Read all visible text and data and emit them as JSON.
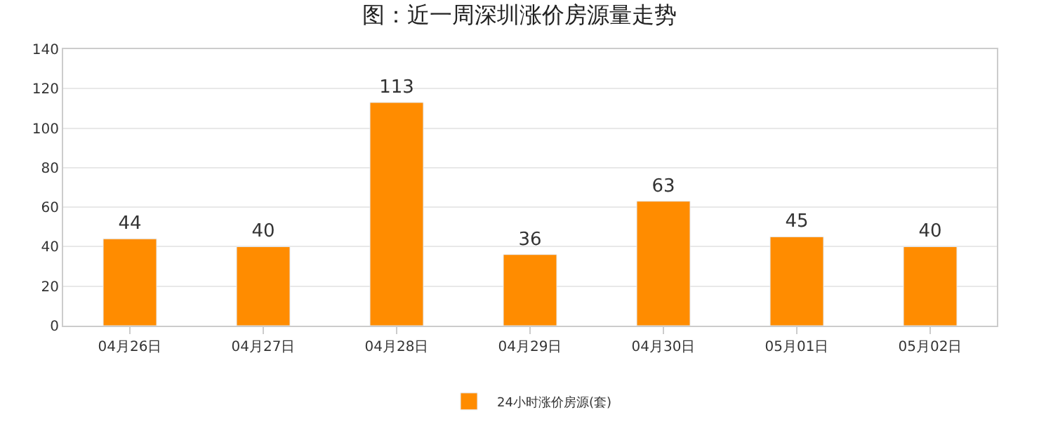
{
  "chart_data": {
    "type": "bar",
    "title": "图：近一周深圳涨价房源量走势",
    "categories": [
      "04月26日",
      "04月27日",
      "04月28日",
      "04月29日",
      "04月30日",
      "05月01日",
      "05月02日"
    ],
    "series": [
      {
        "name": "24小时涨价房源(套)",
        "color": "#ff8c00",
        "values": [
          44,
          40,
          113,
          36,
          63,
          45,
          40
        ]
      }
    ],
    "ylim": [
      0,
      140
    ],
    "yticks": [
      0,
      20,
      40,
      60,
      80,
      100,
      120,
      140
    ],
    "grid": "y",
    "legend": "bottom",
    "data_labels": true
  }
}
